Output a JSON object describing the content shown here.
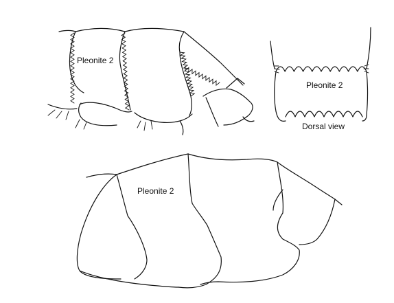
{
  "labels": {
    "upper_left_segment": "Pleonite 2",
    "dorsal_segment": "Pleonite 2",
    "dorsal_caption": "Dorsal view",
    "lower_segment": "Pleonite 2"
  }
}
